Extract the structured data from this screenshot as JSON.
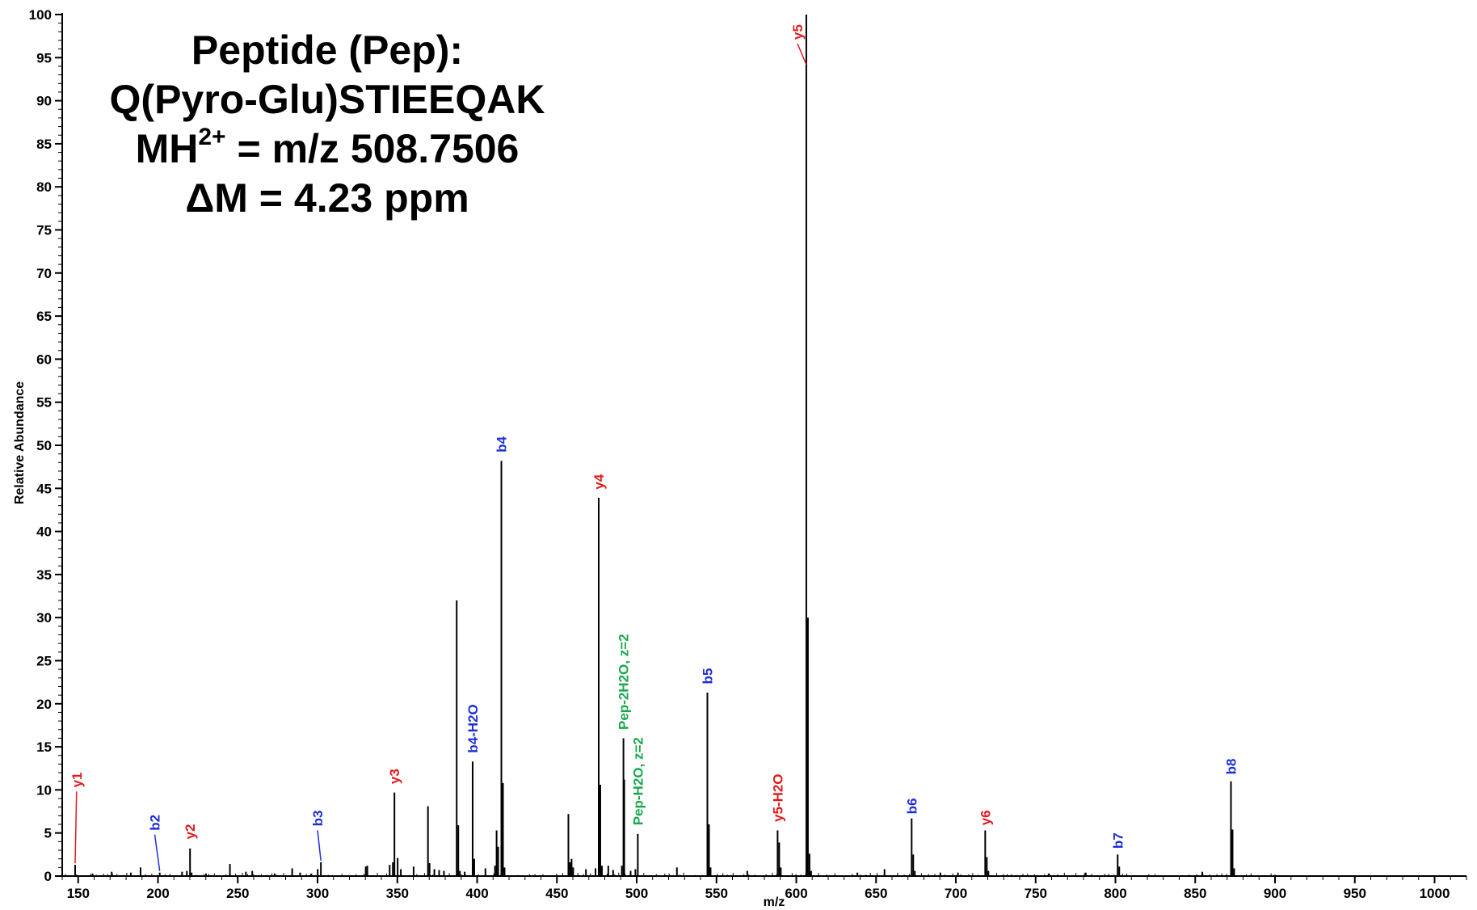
{
  "header": {
    "line1": "Peptide (Pep):",
    "line2": "Q(Pyro-Glu)STIEEQAK",
    "line3_pre": "MH",
    "line3_sup": "2+",
    "line3_post": " = m/z 508.7506",
    "line4": "ΔM = 4.23 ppm"
  },
  "colors": {
    "y_ion": "#e31a1c",
    "b_ion": "#1f2fd6",
    "precursor_ion": "#1aa84b",
    "axis": "#000000"
  },
  "chart_data": {
    "type": "bar",
    "subtype": "mass-spectrum-stick",
    "xlabel": "m/z",
    "ylabel": "Relative Abundance",
    "xlim": [
      140,
      1020
    ],
    "ylim": [
      0,
      100
    ],
    "x_ticks": [
      150,
      200,
      250,
      300,
      350,
      400,
      450,
      500,
      550,
      600,
      650,
      700,
      750,
      800,
      850,
      900,
      950,
      1000
    ],
    "y_ticks": [
      0,
      5,
      10,
      15,
      20,
      25,
      30,
      35,
      40,
      45,
      50,
      55,
      60,
      65,
      70,
      75,
      80,
      85,
      90,
      95,
      100
    ],
    "grid": false,
    "legend": "none",
    "peaks": [
      {
        "x": 148.1,
        "y": 1.3
      },
      {
        "x": 159.0,
        "y": 0.3
      },
      {
        "x": 171.0,
        "y": 0.5
      },
      {
        "x": 183.0,
        "y": 0.4
      },
      {
        "x": 189.1,
        "y": 1.0
      },
      {
        "x": 201.1,
        "y": 0.4
      },
      {
        "x": 215.1,
        "y": 0.5
      },
      {
        "x": 218.1,
        "y": 0.6
      },
      {
        "x": 220.1,
        "y": 3.2
      },
      {
        "x": 221.1,
        "y": 0.4
      },
      {
        "x": 230.1,
        "y": 0.3
      },
      {
        "x": 245.1,
        "y": 1.4
      },
      {
        "x": 255.1,
        "y": 0.5
      },
      {
        "x": 259.1,
        "y": 0.6
      },
      {
        "x": 273.1,
        "y": 0.3
      },
      {
        "x": 284.1,
        "y": 0.9
      },
      {
        "x": 289.1,
        "y": 0.4
      },
      {
        "x": 296.1,
        "y": 0.3
      },
      {
        "x": 300.1,
        "y": 0.8
      },
      {
        "x": 302.1,
        "y": 1.6
      },
      {
        "x": 330.2,
        "y": 1.1
      },
      {
        "x": 331.2,
        "y": 1.2
      },
      {
        "x": 345.2,
        "y": 1.3
      },
      {
        "x": 347.2,
        "y": 1.6
      },
      {
        "x": 348.2,
        "y": 9.7
      },
      {
        "x": 350.2,
        "y": 2.1
      },
      {
        "x": 352.2,
        "y": 0.8
      },
      {
        "x": 360.2,
        "y": 1.1
      },
      {
        "x": 369.2,
        "y": 8.1
      },
      {
        "x": 370.2,
        "y": 1.5
      },
      {
        "x": 373.2,
        "y": 0.8
      },
      {
        "x": 376.2,
        "y": 0.7
      },
      {
        "x": 379.2,
        "y": 0.6
      },
      {
        "x": 387.2,
        "y": 32.0
      },
      {
        "x": 388.2,
        "y": 5.9
      },
      {
        "x": 389.2,
        "y": 0.6
      },
      {
        "x": 392.2,
        "y": 0.5
      },
      {
        "x": 397.2,
        "y": 13.3
      },
      {
        "x": 398.2,
        "y": 2.0
      },
      {
        "x": 405.2,
        "y": 0.9
      },
      {
        "x": 411.2,
        "y": 1.2
      },
      {
        "x": 412.2,
        "y": 5.3
      },
      {
        "x": 413.2,
        "y": 3.4
      },
      {
        "x": 415.2,
        "y": 48.2
      },
      {
        "x": 416.2,
        "y": 10.8
      },
      {
        "x": 417.2,
        "y": 1.0
      },
      {
        "x": 457.2,
        "y": 7.2
      },
      {
        "x": 458.2,
        "y": 1.6
      },
      {
        "x": 459.2,
        "y": 2.0
      },
      {
        "x": 460.2,
        "y": 1.0
      },
      {
        "x": 468.2,
        "y": 0.8
      },
      {
        "x": 474.2,
        "y": 0.9
      },
      {
        "x": 476.2,
        "y": 43.9
      },
      {
        "x": 477.2,
        "y": 10.6
      },
      {
        "x": 478.2,
        "y": 1.2
      },
      {
        "x": 482.2,
        "y": 1.2
      },
      {
        "x": 485.2,
        "y": 0.7
      },
      {
        "x": 490.7,
        "y": 1.2
      },
      {
        "x": 491.7,
        "y": 16.0
      },
      {
        "x": 492.2,
        "y": 11.2
      },
      {
        "x": 496.2,
        "y": 0.6
      },
      {
        "x": 499.2,
        "y": 0.8
      },
      {
        "x": 500.7,
        "y": 4.9
      },
      {
        "x": 525.2,
        "y": 1.0
      },
      {
        "x": 544.3,
        "y": 21.3
      },
      {
        "x": 545.3,
        "y": 6.0
      },
      {
        "x": 546.3,
        "y": 1.0
      },
      {
        "x": 569.3,
        "y": 0.6
      },
      {
        "x": 588.3,
        "y": 5.3
      },
      {
        "x": 589.3,
        "y": 3.9
      },
      {
        "x": 590.3,
        "y": 1.0
      },
      {
        "x": 606.3,
        "y": 100.0
      },
      {
        "x": 607.3,
        "y": 30.0
      },
      {
        "x": 608.3,
        "y": 2.6
      },
      {
        "x": 609.3,
        "y": 0.6
      },
      {
        "x": 638.3,
        "y": 0.4
      },
      {
        "x": 655.3,
        "y": 0.8
      },
      {
        "x": 672.3,
        "y": 6.7
      },
      {
        "x": 673.3,
        "y": 2.5
      },
      {
        "x": 674.3,
        "y": 0.6
      },
      {
        "x": 690.3,
        "y": 0.4
      },
      {
        "x": 701.3,
        "y": 0.4
      },
      {
        "x": 718.4,
        "y": 5.3
      },
      {
        "x": 719.4,
        "y": 2.2
      },
      {
        "x": 720.4,
        "y": 0.6
      },
      {
        "x": 758.4,
        "y": 0.3
      },
      {
        "x": 781.4,
        "y": 0.4
      },
      {
        "x": 801.4,
        "y": 2.5
      },
      {
        "x": 802.4,
        "y": 1.1
      },
      {
        "x": 854.4,
        "y": 0.5
      },
      {
        "x": 872.4,
        "y": 11.0
      },
      {
        "x": 873.4,
        "y": 5.4
      },
      {
        "x": 874.4,
        "y": 0.9
      }
    ],
    "annotations": [
      {
        "label": "y1",
        "x": 148.1,
        "y": 1.3,
        "ion": "y",
        "lx": 149.0,
        "ly": 10.0,
        "leader": true
      },
      {
        "label": "b2",
        "x": 201.1,
        "y": 0.4,
        "ion": "b",
        "lx": 198.0,
        "ly": 5.0,
        "leader": true
      },
      {
        "label": "y2",
        "x": 220.1,
        "y": 3.2,
        "ion": "y",
        "lx": 220.1,
        "ly": 4.0,
        "leader": false
      },
      {
        "label": "b3",
        "x": 302.1,
        "y": 1.6,
        "ion": "b",
        "lx": 300.0,
        "ly": 5.5,
        "leader": true
      },
      {
        "label": "y3",
        "x": 348.2,
        "y": 9.7,
        "ion": "y",
        "lx": 348.2,
        "ly": 10.4,
        "leader": false
      },
      {
        "label": "b4-H2O",
        "x": 397.2,
        "y": 13.3,
        "ion": "b",
        "lx": 397.2,
        "ly": 14.0,
        "leader": false
      },
      {
        "label": "b4",
        "x": 415.2,
        "y": 48.2,
        "ion": "b",
        "lx": 415.2,
        "ly": 48.9,
        "leader": false
      },
      {
        "label": "y4",
        "x": 476.2,
        "y": 43.9,
        "ion": "y",
        "lx": 476.2,
        "ly": 44.6,
        "leader": false
      },
      {
        "label": "Pep-2H2O, z=2",
        "x": 491.7,
        "y": 16.0,
        "ion": "precursor",
        "lx": 491.7,
        "ly": 16.7,
        "leader": false
      },
      {
        "label": "Pep-H2O, z=2",
        "x": 500.7,
        "y": 4.9,
        "ion": "precursor",
        "lx": 500.7,
        "ly": 5.6,
        "leader": false
      },
      {
        "label": "b5",
        "x": 544.3,
        "y": 21.3,
        "ion": "b",
        "lx": 544.3,
        "ly": 22.0,
        "leader": false
      },
      {
        "label": "y5-H2O",
        "x": 588.3,
        "y": 5.3,
        "ion": "y",
        "lx": 588.3,
        "ly": 6.0,
        "leader": false
      },
      {
        "label": "y5",
        "x": 606.3,
        "y": 94.0,
        "ion": "y",
        "lx": 600.8,
        "ly": 96.8,
        "leader": true
      },
      {
        "label": "b6",
        "x": 672.3,
        "y": 6.7,
        "ion": "b",
        "lx": 672.3,
        "ly": 6.9,
        "leader": false
      },
      {
        "label": "y6",
        "x": 718.4,
        "y": 5.3,
        "ion": "y",
        "lx": 718.4,
        "ly": 5.6,
        "leader": false
      },
      {
        "label": "b7",
        "x": 801.4,
        "y": 2.5,
        "ion": "b",
        "lx": 801.4,
        "ly": 2.9,
        "leader": false
      },
      {
        "label": "b8",
        "x": 872.4,
        "y": 11.0,
        "ion": "b",
        "lx": 872.4,
        "ly": 11.5,
        "leader": false
      }
    ]
  }
}
